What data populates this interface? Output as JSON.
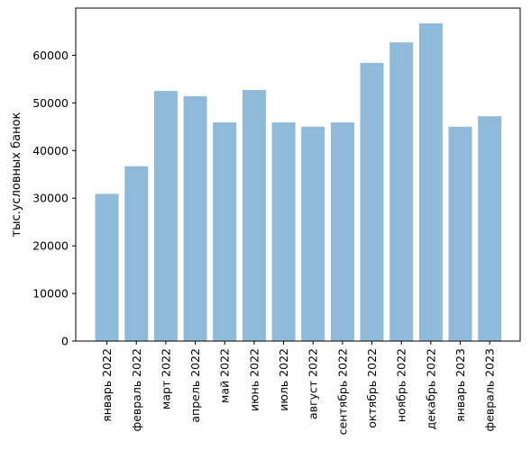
{
  "chart_data": {
    "type": "bar",
    "ylabel": "тыс.условных банок",
    "xlabel": "",
    "title": "",
    "categories": [
      "январь 2022",
      "февраль 2022",
      "март 2022",
      "апрель 2022",
      "май 2022",
      "июнь 2022",
      "июль 2022",
      "август 2022",
      "сентябрь 2022",
      "октябрь 2022",
      "ноябрь 2022",
      "декабрь 2022",
      "январь 2023",
      "февраль 2023"
    ],
    "values": [
      30900,
      36700,
      52500,
      51400,
      45900,
      52700,
      45900,
      45000,
      45900,
      58400,
      62700,
      66700,
      45000,
      47200
    ],
    "ylim": [
      0,
      69900
    ],
    "yticks": [
      0,
      10000,
      20000,
      30000,
      40000,
      50000,
      60000
    ],
    "grid": false,
    "bar_color": "#8fbad9"
  }
}
